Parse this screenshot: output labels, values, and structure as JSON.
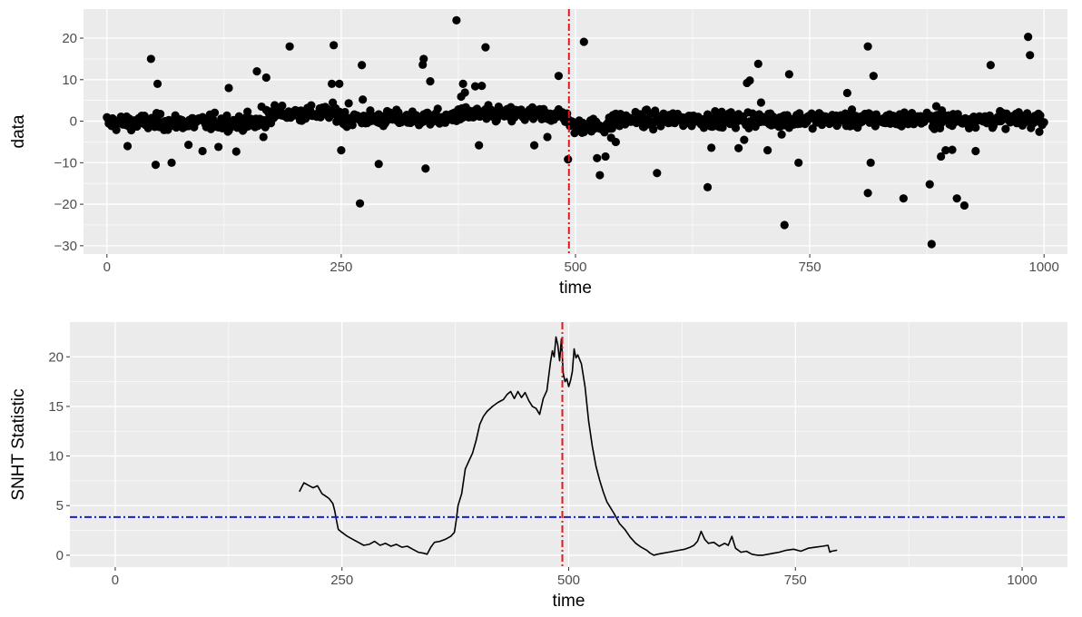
{
  "chart_data": [
    {
      "type": "scatter",
      "title": "",
      "xlabel": "time",
      "ylabel": "data",
      "xlim": [
        -25,
        1025
      ],
      "ylim": [
        -32,
        27
      ],
      "x_ticks": [
        0,
        250,
        500,
        750,
        1000
      ],
      "x_tick_labels": [
        "0",
        "250",
        "500",
        "750",
        "1000"
      ],
      "y_ticks": [
        -30,
        -20,
        -10,
        0,
        10,
        20
      ],
      "y_tick_labels": [
        "−30",
        "−20",
        "−10",
        "0",
        "10",
        "20"
      ],
      "grid": true,
      "vline": {
        "x": 493,
        "color": "#e8161c",
        "style": "dash-dot"
      },
      "point_color": "#000000",
      "outliers": [
        [
          47,
          15
        ],
        [
          52,
          -10.5
        ],
        [
          54,
          9
        ],
        [
          22,
          -6
        ],
        [
          69,
          -10
        ],
        [
          87,
          -5.7
        ],
        [
          102,
          -7.2
        ],
        [
          119,
          -6.2
        ],
        [
          130,
          8
        ],
        [
          138,
          -7.3
        ],
        [
          160,
          12
        ],
        [
          165,
          3.5
        ],
        [
          167,
          -3.8
        ],
        [
          170,
          10.5
        ],
        [
          195,
          18
        ],
        [
          240,
          9
        ],
        [
          242,
          18.3
        ],
        [
          248,
          9
        ],
        [
          250,
          -7
        ],
        [
          258,
          4.3
        ],
        [
          270,
          -19.8
        ],
        [
          272,
          13.5
        ],
        [
          273,
          5.2
        ],
        [
          290,
          -10.3
        ],
        [
          337,
          13.6
        ],
        [
          338,
          15
        ],
        [
          340,
          -11.4
        ],
        [
          345,
          9.6
        ],
        [
          373,
          24.3
        ],
        [
          378,
          5.9
        ],
        [
          380,
          9
        ],
        [
          382,
          6.9
        ],
        [
          393,
          8.4
        ],
        [
          397,
          -5.8
        ],
        [
          400,
          8.5
        ],
        [
          404,
          17.8
        ],
        [
          456,
          -5.8
        ],
        [
          470,
          -3.8
        ],
        [
          482,
          10.9
        ],
        [
          492,
          -9.2
        ],
        [
          509,
          19.1
        ],
        [
          523,
          -8.9
        ],
        [
          526,
          -13
        ],
        [
          532,
          -8.5
        ],
        [
          538,
          -4
        ],
        [
          543,
          -5
        ],
        [
          587,
          -12.5
        ],
        [
          641,
          -15.9
        ],
        [
          645,
          -6.4
        ],
        [
          674,
          -6.5
        ],
        [
          680,
          -4.5
        ],
        [
          683,
          9.2
        ],
        [
          686,
          9.8
        ],
        [
          695,
          13.8
        ],
        [
          698,
          4.5
        ],
        [
          705,
          -7
        ],
        [
          720,
          -3.2
        ],
        [
          723,
          -25
        ],
        [
          728,
          11.3
        ],
        [
          738,
          -10
        ],
        [
          790,
          6.8
        ],
        [
          812,
          18
        ],
        [
          812,
          -17.3
        ],
        [
          815,
          -10
        ],
        [
          818,
          10.9
        ],
        [
          850,
          -18.6
        ],
        [
          878,
          -15.2
        ],
        [
          880,
          -29.6
        ],
        [
          885,
          3.6
        ],
        [
          890,
          -8.5
        ],
        [
          895,
          -7
        ],
        [
          902,
          -6.9
        ],
        [
          907,
          -18.6
        ],
        [
          915,
          -20.3
        ],
        [
          927,
          -7.2
        ],
        [
          943,
          13.5
        ],
        [
          983,
          20.3
        ],
        [
          985,
          15.9
        ]
      ],
      "baseline_noise_sd": 1.1,
      "baseline_segments": [
        {
          "from": 0,
          "to": 170,
          "mean": -0.3
        },
        {
          "from": 170,
          "to": 250,
          "mean": 1.9
        },
        {
          "from": 250,
          "to": 370,
          "mean": 0.6
        },
        {
          "from": 370,
          "to": 493,
          "mean": 1.6
        },
        {
          "from": 493,
          "to": 540,
          "mean": -1.1
        },
        {
          "from": 540,
          "to": 1000,
          "mean": 0.4
        }
      ]
    },
    {
      "type": "line",
      "title": "",
      "xlabel": "time",
      "ylabel": "SNHT Statistic",
      "xlim": [
        -50,
        1050
      ],
      "ylim": [
        -1.2,
        23.5
      ],
      "x_ticks": [
        0,
        250,
        500,
        750,
        1000
      ],
      "x_tick_labels": [
        "0",
        "250",
        "500",
        "750",
        "1000"
      ],
      "y_ticks": [
        0,
        5,
        10,
        15,
        20
      ],
      "y_tick_labels": [
        "0",
        "5",
        "10",
        "15",
        "20"
      ],
      "grid": true,
      "hline": {
        "y": 3.84,
        "color": "#1a1adc",
        "style": "dash-dot"
      },
      "vline": {
        "x": 493,
        "color": "#e8161c",
        "style": "dash-dot"
      },
      "line_color": "#000000",
      "series": [
        {
          "x": [
            203,
            208,
            212,
            218,
            223,
            228,
            233,
            236,
            240,
            242,
            244,
            246,
            250,
            256,
            262,
            268,
            274,
            280,
            286,
            292,
            298,
            304,
            310,
            316,
            322,
            328,
            334,
            340,
            344,
            348,
            352,
            358,
            364,
            370,
            374,
            376,
            378,
            382,
            386,
            390,
            394,
            398,
            402,
            406,
            410,
            416,
            422,
            428,
            432,
            436,
            440,
            444,
            448,
            452,
            456,
            460,
            464,
            468,
            472,
            476,
            480,
            482,
            484,
            486,
            488,
            490,
            492,
            494,
            496,
            498,
            500,
            502,
            504,
            506,
            508,
            510,
            514,
            518,
            522,
            526,
            530,
            534,
            538,
            542,
            546,
            550,
            556,
            562,
            568,
            574,
            580,
            586,
            590,
            594,
            598,
            604,
            610,
            616,
            622,
            628,
            634,
            638,
            642,
            646,
            650,
            654,
            660,
            666,
            672,
            676,
            680,
            684,
            690,
            696,
            702,
            708,
            714,
            720,
            726,
            732,
            740,
            748,
            756,
            764,
            772,
            780,
            786,
            788,
            790,
            796
          ],
          "y": [
            6.4,
            7.3,
            7.1,
            6.8,
            7.0,
            6.2,
            5.9,
            5.7,
            5.2,
            4.5,
            3.5,
            2.6,
            2.3,
            1.9,
            1.6,
            1.3,
            1.0,
            1.1,
            1.4,
            1.0,
            1.2,
            0.9,
            1.1,
            0.8,
            0.9,
            0.6,
            0.3,
            0.2,
            0.1,
            0.8,
            1.3,
            1.4,
            1.6,
            1.9,
            2.3,
            3.5,
            5.0,
            6.2,
            8.7,
            9.5,
            10.3,
            11.6,
            13.2,
            14.0,
            14.5,
            15.0,
            15.4,
            15.7,
            16.2,
            16.5,
            15.8,
            16.5,
            15.9,
            16.4,
            15.6,
            15.0,
            14.8,
            14.2,
            15.8,
            16.6,
            19.5,
            20.6,
            20.0,
            22.0,
            21.2,
            19.6,
            21.8,
            18.3,
            17.5,
            17.8,
            17.0,
            17.6,
            18.5,
            20.8,
            19.9,
            20.2,
            19.3,
            17.0,
            13.5,
            11.0,
            9.0,
            7.6,
            6.4,
            5.4,
            4.8,
            4.2,
            3.2,
            2.6,
            1.8,
            1.2,
            0.8,
            0.5,
            0.2,
            0.0,
            0.1,
            0.2,
            0.3,
            0.4,
            0.5,
            0.6,
            0.8,
            1.0,
            1.4,
            2.4,
            1.6,
            1.2,
            1.3,
            0.9,
            1.2,
            1.0,
            1.9,
            0.7,
            0.3,
            0.4,
            0.1,
            0.0,
            0.0,
            0.1,
            0.2,
            0.3,
            0.5,
            0.6,
            0.4,
            0.7,
            0.8,
            0.9,
            1.0,
            0.3,
            0.4,
            0.5
          ]
        }
      ]
    }
  ]
}
